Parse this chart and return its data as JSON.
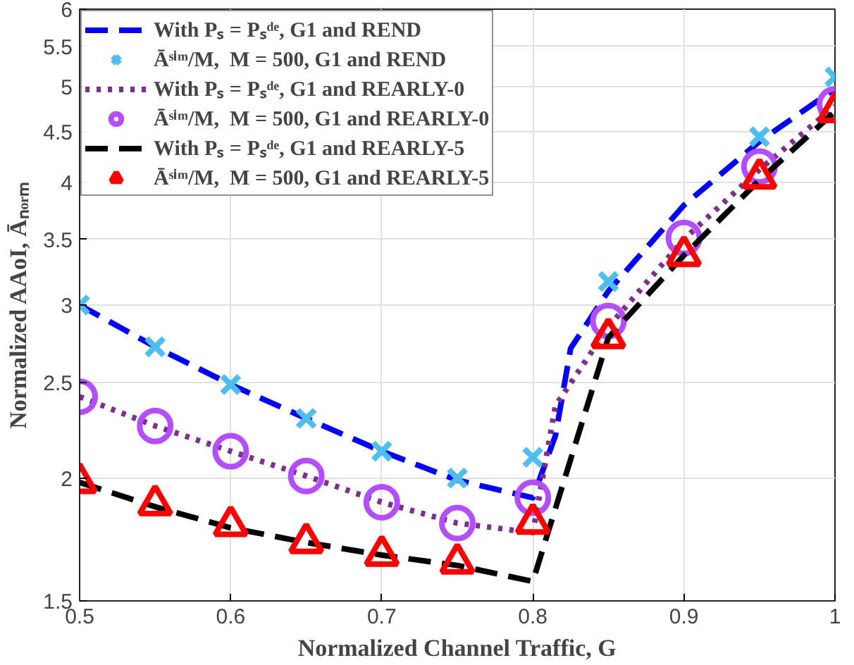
{
  "chart_data": {
    "type": "line",
    "xlabel": "Normalized Channel Traffic, G",
    "ylabel": "Normalized AAoI, Āₙₒᵣₘ",
    "xlim": [
      0.5,
      1
    ],
    "xticks": [
      0.5,
      0.6,
      0.7,
      0.8,
      0.9,
      1
    ],
    "ylim": [
      1.5,
      6
    ],
    "yticks": [
      1.5,
      2,
      2.5,
      3,
      3.5,
      4,
      4.5,
      5,
      5.5,
      6
    ],
    "log": "y",
    "grid": true,
    "legend": "top left",
    "series": [
      {
        "name": "With Pₛ = Pₛᵈᵉ, G1 and REND",
        "line_style": "dashed",
        "marker": "none",
        "color": "#0000ff",
        "x": [
          0.5,
          0.55,
          0.6,
          0.65,
          0.7,
          0.75,
          0.8,
          0.815,
          0.825,
          0.85,
          0.9,
          0.95,
          1.0
        ],
        "values": [
          3.0,
          2.72,
          2.49,
          2.3,
          2.13,
          1.99,
          1.91,
          2.21,
          2.71,
          3.1,
          3.79,
          4.4,
          4.98
        ]
      },
      {
        "name": "Āˢⁱᵐ/M,  M = 500, G1 and REND",
        "type": "scatter",
        "marker": "cross",
        "color": "#4dbeee",
        "x": [
          0.5,
          0.55,
          0.6,
          0.65,
          0.7,
          0.75,
          0.8,
          0.85,
          0.9,
          0.95,
          1.0
        ],
        "values": [
          3.0,
          2.72,
          2.49,
          2.3,
          2.13,
          2.0,
          2.1,
          3.17,
          null,
          4.45,
          5.12
        ]
      },
      {
        "name": "With Pₛ = Pₛᵈᵉ, G1 and REARLY-0",
        "line_style": "dotted",
        "marker": "none",
        "color": "#7e2f8e",
        "x": [
          0.5,
          0.55,
          0.6,
          0.65,
          0.7,
          0.75,
          0.8,
          0.815,
          0.85,
          0.9,
          0.95,
          1.0
        ],
        "values": [
          2.42,
          2.26,
          2.13,
          2.01,
          1.89,
          1.8,
          1.76,
          2.37,
          2.85,
          3.5,
          4.12,
          4.78
        ]
      },
      {
        "name": "Āˢⁱᵐ/M,  M = 500, G1 and REARLY-0",
        "type": "scatter",
        "marker": "circle",
        "color": "#b34dff",
        "x": [
          0.5,
          0.55,
          0.6,
          0.65,
          0.7,
          0.75,
          0.8,
          0.85,
          0.9,
          0.95,
          1.0
        ],
        "values": [
          2.42,
          2.26,
          2.13,
          2.01,
          1.89,
          1.8,
          1.91,
          2.89,
          3.51,
          4.15,
          4.8
        ]
      },
      {
        "name": "With Pₛ = Pₛᵈᵉ, G1 and REARLY-5",
        "line_style": "dashed",
        "marker": "none",
        "color": "#000000",
        "x": [
          0.5,
          0.55,
          0.6,
          0.65,
          0.7,
          0.75,
          0.8,
          0.85,
          0.9,
          0.95,
          1.0
        ],
        "values": [
          1.98,
          1.87,
          1.78,
          1.72,
          1.67,
          1.63,
          1.57,
          2.78,
          3.37,
          4.02,
          4.72
        ]
      },
      {
        "name": "Āˢⁱᵐ/M,  M = 500, G1 and REARLY-5",
        "type": "scatter",
        "marker": "triangle",
        "color": "#ff0000",
        "x": [
          0.5,
          0.55,
          0.6,
          0.65,
          0.7,
          0.75,
          0.8,
          0.85,
          0.9,
          0.95,
          1.0
        ],
        "values": [
          1.98,
          1.88,
          1.79,
          1.72,
          1.67,
          1.64,
          1.8,
          2.78,
          3.37,
          4.04,
          4.72
        ]
      }
    ]
  }
}
